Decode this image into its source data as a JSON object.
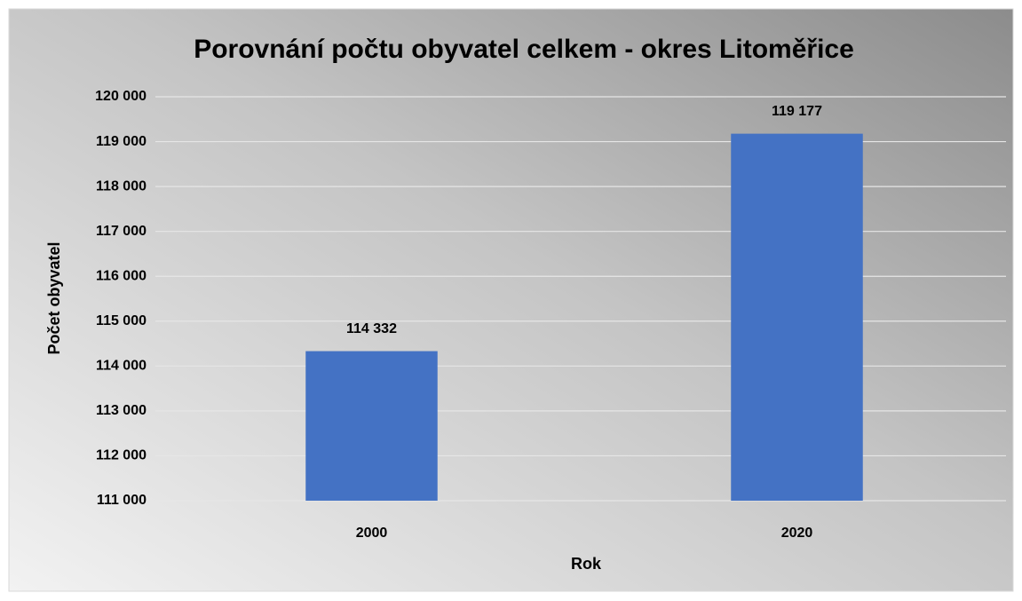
{
  "chart_data": {
    "type": "bar",
    "title": "Porovnání počtu obyvatel celkem - okres Litoměřice",
    "y_label": "Počet obyvatel",
    "x_label": "Rok",
    "categories": [
      "2000",
      "2020"
    ],
    "values": [
      114332,
      119177
    ],
    "value_labels": [
      "114 332",
      "119 177"
    ],
    "color": "#4472c4",
    "ylim": [
      111000,
      120000
    ],
    "yticks": [
      {
        "value": 111000,
        "label": "111 000"
      },
      {
        "value": 112000,
        "label": "112 000"
      },
      {
        "value": 113000,
        "label": "113 000"
      },
      {
        "value": 114000,
        "label": "114 000"
      },
      {
        "value": 115000,
        "label": "115 000"
      },
      {
        "value": 116000,
        "label": "116 000"
      },
      {
        "value": 117000,
        "label": "117 000"
      },
      {
        "value": 118000,
        "label": "118 000"
      },
      {
        "value": 119000,
        "label": "119 000"
      },
      {
        "value": 120000,
        "label": "120 000"
      }
    ],
    "grid": true
  }
}
